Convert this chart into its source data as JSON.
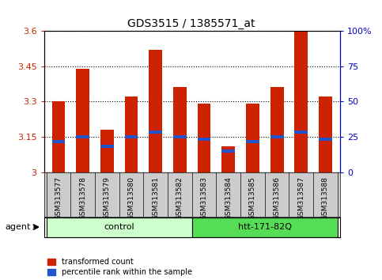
{
  "title": "GDS3515 / 1385571_at",
  "samples": [
    "GSM313577",
    "GSM313578",
    "GSM313579",
    "GSM313580",
    "GSM313581",
    "GSM313582",
    "GSM313583",
    "GSM313584",
    "GSM313585",
    "GSM313586",
    "GSM313587",
    "GSM313588"
  ],
  "red_values": [
    3.3,
    3.44,
    3.18,
    3.32,
    3.52,
    3.36,
    3.29,
    3.11,
    3.29,
    3.36,
    3.6,
    3.32
  ],
  "blue_values": [
    3.13,
    3.15,
    3.11,
    3.15,
    3.17,
    3.15,
    3.14,
    3.09,
    3.13,
    3.15,
    3.17,
    3.14
  ],
  "ymin": 3.0,
  "ymax": 3.6,
  "yticks": [
    3.0,
    3.15,
    3.3,
    3.45,
    3.6
  ],
  "ytick_labels": [
    "3",
    "3.15",
    "3.3",
    "3.45",
    "3.6"
  ],
  "y2ticks": [
    0,
    25,
    50,
    75,
    100
  ],
  "y2tick_labels": [
    "0",
    "25",
    "50",
    "75",
    "100%"
  ],
  "groups": [
    {
      "label": "control",
      "start": 0,
      "end": 6,
      "color": "#ccffcc"
    },
    {
      "label": "htt-171-82Q",
      "start": 6,
      "end": 12,
      "color": "#55dd55"
    }
  ],
  "agent_label": "agent",
  "red_color": "#cc2200",
  "blue_color": "#2255cc",
  "bar_width": 0.55,
  "bg_color": "#cccccc",
  "plot_bg": "#ffffff",
  "ylabel_color": "#cc2200",
  "y2label_color": "#0000cc",
  "grid_color": "#000000",
  "legend_red": "transformed count",
  "legend_blue": "percentile rank within the sample"
}
